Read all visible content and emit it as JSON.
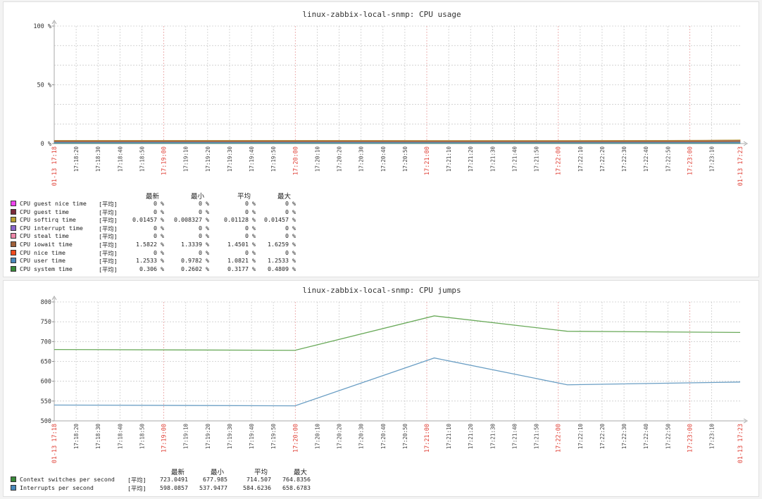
{
  "chart_data": [
    {
      "type": "area",
      "title": "linux-zabbix-local-snmp: CPU usage",
      "y_ticks": [
        "100 %",
        "50 %",
        "0 %"
      ],
      "ylim": [
        0,
        100
      ],
      "x_start_label": "01-13 17:18",
      "x_end_label": "01-13 17:23",
      "x_tick_labels": [
        "17:18:20",
        "17:18:30",
        "17:18:40",
        "17:18:50",
        "17:19:00",
        "17:19:10",
        "17:19:20",
        "17:19:30",
        "17:19:40",
        "17:19:50",
        "17:20:00",
        "17:20:10",
        "17:20:20",
        "17:20:30",
        "17:20:40",
        "17:20:50",
        "17:21:00",
        "17:21:10",
        "17:21:20",
        "17:21:30",
        "17:21:40",
        "17:21:50",
        "17:22:00",
        "17:22:10",
        "17:22:20",
        "17:22:30",
        "17:22:40",
        "17:22:50",
        "17:23:00",
        "17:23:10"
      ],
      "major_tick_labels": [
        "17:19:00",
        "17:20:00",
        "17:21:00",
        "17:22:00",
        "17:23:00"
      ],
      "grid": true,
      "legend_headers": [
        "最新",
        "最小",
        "平均",
        "最大"
      ],
      "series": [
        {
          "name": "CPU guest nice time",
          "color": "#ee44ee",
          "fn": "[平均]",
          "last": "0 %",
          "min": "0 %",
          "avg": "0 %",
          "max": "0 %",
          "values": [
            0,
            0,
            0,
            0,
            0,
            0,
            0
          ]
        },
        {
          "name": "CPU guest time",
          "color": "#7a2a3a",
          "fn": "[平均]",
          "last": "0 %",
          "min": "0 %",
          "avg": "0 %",
          "max": "0 %",
          "values": [
            0,
            0,
            0,
            0,
            0,
            0,
            0
          ]
        },
        {
          "name": "CPU softirq time",
          "color": "#b8a030",
          "fn": "[平均]",
          "last": "0.01457 %",
          "min": "0.008327 %",
          "avg": "0.01128 %",
          "max": "0.01457 %",
          "values": [
            0.01,
            0.01,
            0.01,
            0.01,
            0.01,
            0.01,
            0.01
          ]
        },
        {
          "name": "CPU interrupt time",
          "color": "#8a66cc",
          "fn": "[平均]",
          "last": "0 %",
          "min": "0 %",
          "avg": "0 %",
          "max": "0 %",
          "values": [
            0,
            0,
            0,
            0,
            0,
            0,
            0
          ]
        },
        {
          "name": "CPU steal time",
          "color": "#ee88aa",
          "fn": "[平均]",
          "last": "0 %",
          "min": "0 %",
          "avg": "0 %",
          "max": "0 %",
          "values": [
            0,
            0,
            0,
            0,
            0,
            0,
            0
          ]
        },
        {
          "name": "CPU iowait time",
          "color": "#a0603a",
          "fn": "[平均]",
          "last": "1.5822 %",
          "min": "1.3339 %",
          "avg": "1.4501 %",
          "max": "1.6259 %",
          "values": [
            1.45,
            1.45,
            1.45,
            1.34,
            1.35,
            1.45,
            1.58
          ]
        },
        {
          "name": "CPU nice time",
          "color": "#f04a1e",
          "fn": "[平均]",
          "last": "0 %",
          "min": "0 %",
          "avg": "0 %",
          "max": "0 %",
          "values": [
            0,
            0,
            0,
            0,
            0,
            0,
            0
          ]
        },
        {
          "name": "CPU user time",
          "color": "#4a88bb",
          "fn": "[平均]",
          "last": "1.2533 %",
          "min": "0.9782 %",
          "avg": "1.0821 %",
          "max": "1.2533 %",
          "values": [
            1.05,
            1.05,
            1.05,
            1.02,
            0.98,
            1.1,
            1.25
          ]
        },
        {
          "name": "CPU system time",
          "color": "#3a8a3a",
          "fn": "[平均]",
          "last": "0.306 %",
          "min": "0.2602 %",
          "avg": "0.3177 %",
          "max": "0.4809 %",
          "values": [
            0.31,
            0.31,
            0.31,
            0.3,
            0.3,
            0.31,
            0.31
          ]
        }
      ],
      "x_fractions": [
        0,
        0.2,
        0.35,
        0.55,
        0.75,
        0.95,
        1
      ]
    },
    {
      "type": "line",
      "title": "linux-zabbix-local-snmp: CPU jumps",
      "y_ticks": [
        "800",
        "750",
        "700",
        "650",
        "600",
        "550",
        "500"
      ],
      "ylim": [
        500,
        800
      ],
      "x_start_label": "01-13 17:18",
      "x_end_label": "01-13 17:23",
      "x_tick_labels": [
        "17:18:20",
        "17:18:30",
        "17:18:40",
        "17:18:50",
        "17:19:00",
        "17:19:10",
        "17:19:20",
        "17:19:30",
        "17:19:40",
        "17:19:50",
        "17:20:00",
        "17:20:10",
        "17:20:20",
        "17:20:30",
        "17:20:40",
        "17:20:50",
        "17:21:00",
        "17:21:10",
        "17:21:20",
        "17:21:30",
        "17:21:40",
        "17:21:50",
        "17:22:00",
        "17:22:10",
        "17:22:20",
        "17:22:30",
        "17:22:40",
        "17:22:50",
        "17:23:00",
        "17:23:10"
      ],
      "major_tick_labels": [
        "17:19:00",
        "17:20:00",
        "17:21:00",
        "17:22:00",
        "17:23:00"
      ],
      "grid": true,
      "legend_headers": [
        "最新",
        "最小",
        "平均",
        "最大"
      ],
      "x_fractions": [
        0,
        0.351,
        0.554,
        0.748,
        1
      ],
      "series": [
        {
          "name": "Context switches per second",
          "color": "#6aaa5a",
          "swatch": "#3a8a3a",
          "fn": "[平均]",
          "last": "723.0491",
          "min": "677.985",
          "avg": "714.507",
          "max": "764.8356",
          "values": [
            680,
            678,
            764.8,
            726,
            723
          ]
        },
        {
          "name": "Interrupts per second",
          "color": "#6a9ec4",
          "swatch": "#4a88bb",
          "fn": "[平均]",
          "last": "598.0857",
          "min": "537.9477",
          "avg": "584.6236",
          "max": "658.6783",
          "values": [
            540,
            538,
            658.7,
            591,
            598
          ]
        }
      ]
    }
  ]
}
